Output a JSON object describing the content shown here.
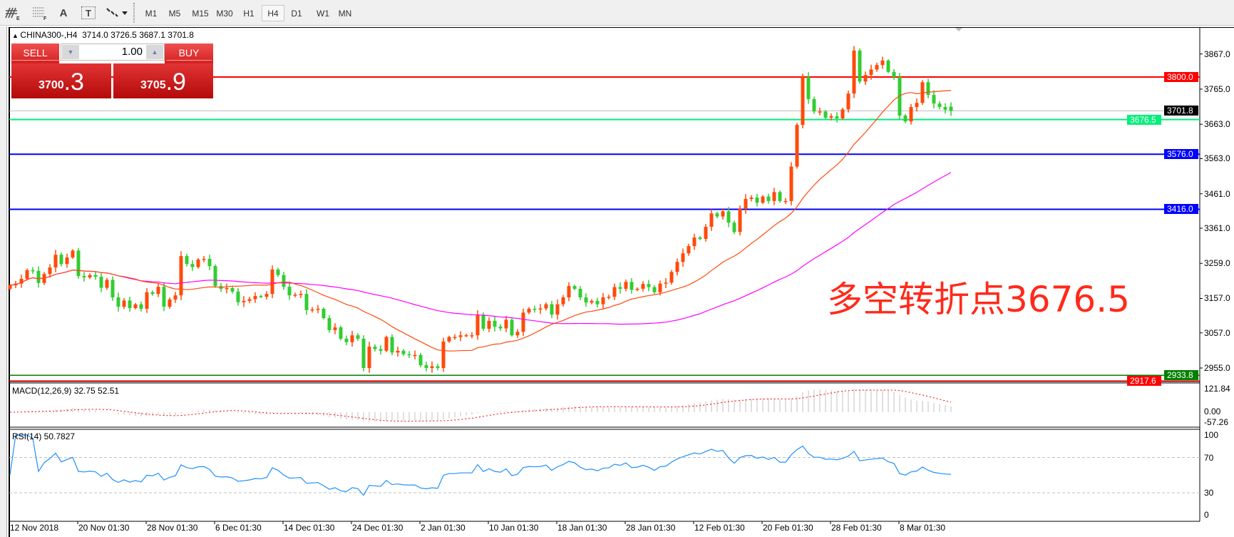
{
  "toolbar": {
    "icons": [
      "elliott-wave-icon",
      "fibonacci-icon",
      "text-icon",
      "text-label-icon",
      "arrows-dropdown-icon"
    ],
    "text_icon_label": "A",
    "label_icon_label": "T",
    "timeframes": [
      "M1",
      "M5",
      "M15",
      "M30",
      "H1",
      "H4",
      "D1",
      "W1",
      "MN"
    ],
    "active_timeframe": "H4"
  },
  "chart": {
    "header": "CHINA300-,H4  3714.0 3726.5 3687.1 3701.8",
    "symbol": "CHINA300-",
    "timeframe": "H4"
  },
  "trade": {
    "sell_label": "SELL",
    "buy_label": "BUY",
    "lot": "1.00",
    "sell_price_main": "3700",
    "sell_price_frac": ".3",
    "buy_price_main": "3705",
    "buy_price_frac": ".9"
  },
  "annotation": "多空转折点3676.5",
  "indicators": {
    "macd_label": "MACD(12,26,9) 32.75 52.51",
    "macd_axis": [
      "121.84",
      "0.00",
      "-57.26"
    ],
    "rsi_label": "RSI(14) 50.7827",
    "rsi_axis": [
      "100",
      "70",
      "30",
      "0"
    ]
  },
  "chart_data": {
    "type": "candlestick",
    "price_axis_ticks": [
      3867.0,
      3765.0,
      3663.0,
      3563.0,
      3461.0,
      3361.0,
      3259.0,
      3157.0,
      3057.0,
      2955.0
    ],
    "price_axis_labels": [
      "3867.0",
      "3765.0",
      "3663.0",
      "3563.0",
      "3461.0",
      "3361.0",
      "3259.0",
      "3157.0",
      "3057.0",
      "2955.0"
    ],
    "date_labels": [
      "12 Nov 2018",
      "20 Nov 01:30",
      "28 Nov 01:30",
      "6 Dec 01:30",
      "14 Dec 01:30",
      "24 Dec 01:30",
      "2 Jan 01:30",
      "10 Jan 01:30",
      "18 Jan 01:30",
      "28 Jan 01:30",
      "12 Feb 01:30",
      "20 Feb 01:30",
      "28 Feb 01:30",
      "8 Mar 01:30"
    ],
    "last_bar": {
      "open": 3714.0,
      "high": 3726.5,
      "low": 3687.1,
      "close": 3701.8
    },
    "colors": {
      "up": "#ff4a0a",
      "down": "#32cd32",
      "ma_fast": "#ff4a0a",
      "ma_slow": "#ff00ff",
      "macd_hist": "#c0c0c0",
      "macd_signal": "#ff0000",
      "rsi": "#1e90ff"
    },
    "levels": [
      {
        "price": 3800.0,
        "label": "3800.0",
        "color": "#ff0000"
      },
      {
        "price": 3701.8,
        "label": "3701.8",
        "color": "#c0c0c0",
        "label_bg": "#000000"
      },
      {
        "price": 3676.5,
        "label": "3676.5",
        "color": "#00f07a"
      },
      {
        "price": 3576.0,
        "label": "3576.0",
        "color": "#0000ff"
      },
      {
        "price": 3416.0,
        "label": "3416.0",
        "color": "#0000ff"
      },
      {
        "price": 2933.8,
        "label": "2933.8",
        "color": "#008000"
      },
      {
        "price": 2917.6,
        "label": "2917.6",
        "color": "#ff0000"
      }
    ],
    "close": [
      3195,
      3200,
      3214,
      3239,
      3237,
      3202,
      3228,
      3247,
      3284,
      3257,
      3276,
      3296,
      3222,
      3218,
      3225,
      3220,
      3188,
      3211,
      3160,
      3133,
      3151,
      3129,
      3140,
      3127,
      3175,
      3170,
      3191,
      3133,
      3154,
      3166,
      3280,
      3257,
      3248,
      3270,
      3272,
      3251,
      3193,
      3185,
      3187,
      3177,
      3146,
      3150,
      3155,
      3164,
      3162,
      3170,
      3241,
      3225,
      3191,
      3166,
      3168,
      3170,
      3123,
      3125,
      3127,
      3100,
      3065,
      3073,
      3040,
      3030,
      3050,
      3040,
      2955,
      3017,
      3010,
      3005,
      3045,
      3000,
      3005,
      2995,
      2993,
      2993,
      2963,
      2955,
      2960,
      2955,
      3032,
      3045,
      3045,
      3050,
      3050,
      3050,
      3110,
      3069,
      3092,
      3075,
      3070,
      3095,
      3050,
      3060,
      3116,
      3127,
      3125,
      3128,
      3140,
      3110,
      3140,
      3160,
      3193,
      3185,
      3160,
      3145,
      3150,
      3140,
      3160,
      3162,
      3190,
      3185,
      3205,
      3182,
      3185,
      3199,
      3190,
      3175,
      3200,
      3203,
      3234,
      3263,
      3288,
      3309,
      3334,
      3330,
      3365,
      3404,
      3395,
      3410,
      3377,
      3350,
      3417,
      3446,
      3450,
      3435,
      3453,
      3440,
      3466,
      3440,
      3440,
      3540,
      3661,
      3800,
      3736,
      3700,
      3700,
      3682,
      3686,
      3680,
      3706,
      3752,
      3877,
      3787,
      3806,
      3822,
      3835,
      3848,
      3815,
      3800,
      3688,
      3671,
      3713,
      3725,
      3785,
      3748,
      3723,
      3713,
      3705,
      3701.8
    ]
  }
}
